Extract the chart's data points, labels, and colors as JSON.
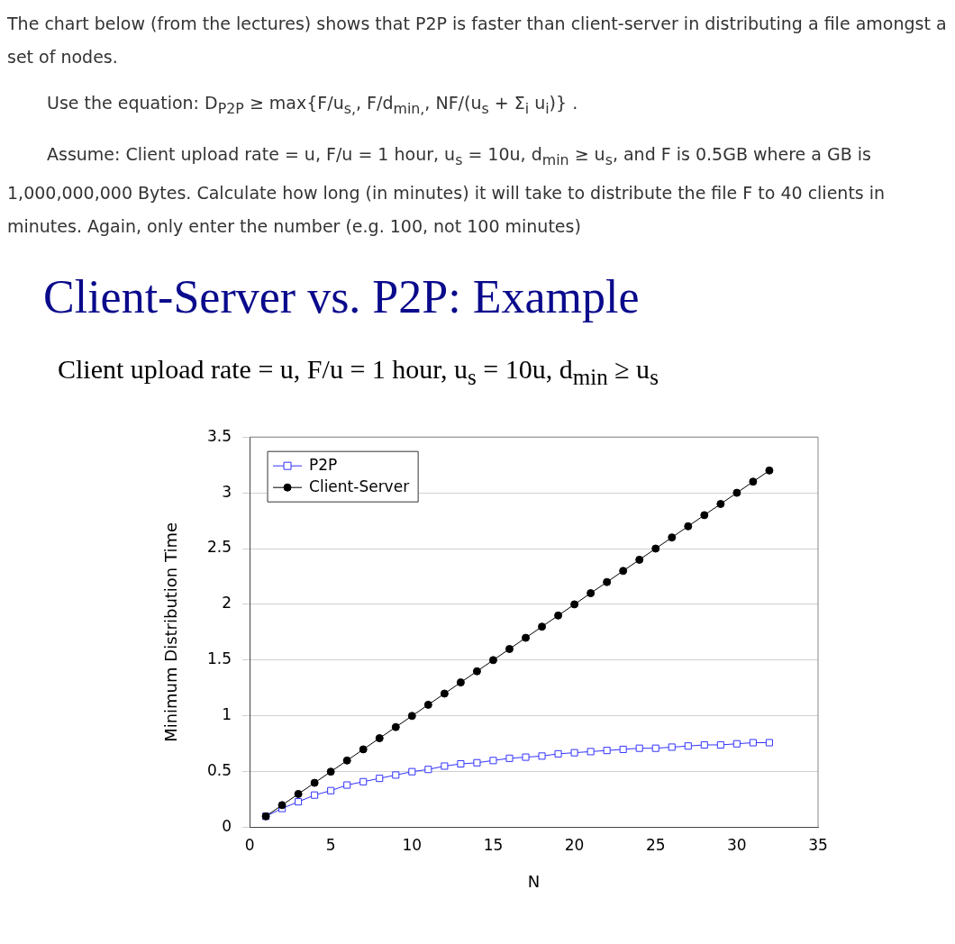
{
  "chart_data": {
    "type": "line",
    "title": "Client-Server vs. P2P: Example",
    "subtitle": "Client upload rate = u,  F/u = 1 hour,  u$_{s}$ = 10u,  d$_{min}$ ≥ u$_{s}$",
    "annotations": [
      "The chart below (from the lectures) shows that P2P is faster than client-server in distributing a file amongst a set of nodes.",
      "Use the equation: D$_{P2P}$ ≥  max{F/u$_{s,}$, F/d$_{min,}$, NF/(u$_{s}$ + Σ$_{i}$ u$_{i}$)} .",
      "Assume: Client upload rate = u,  F/u = 1 hour,  u$_{s}$ = 10u,  d$_{min}$ ≥ u$_{s}$, and F is 0.5GB where a GB is 1,000,000,000 Bytes. Calculate how long (in minutes) it will take to distribute the file F to 40 clients in minutes. Again, only enter the number (e.g. 100, not 100 minutes)"
    ],
    "xlabel": "N",
    "ylabel": "Minimum Distribution Time",
    "x": [
      1,
      2,
      3,
      4,
      5,
      6,
      7,
      8,
      9,
      10,
      11,
      12,
      13,
      14,
      15,
      16,
      17,
      18,
      19,
      20,
      21,
      22,
      23,
      24,
      25,
      26,
      27,
      28,
      29,
      30,
      31,
      32
    ],
    "series": [
      {
        "name": "P2P",
        "color": "#3333ff",
        "marker": "square",
        "values": [
          0.1,
          0.17,
          0.23,
          0.29,
          0.33,
          0.38,
          0.41,
          0.44,
          0.47,
          0.5,
          0.52,
          0.55,
          0.57,
          0.58,
          0.6,
          0.62,
          0.63,
          0.64,
          0.66,
          0.67,
          0.68,
          0.69,
          0.7,
          0.71,
          0.71,
          0.72,
          0.73,
          0.74,
          0.74,
          0.75,
          0.76,
          0.76
        ]
      },
      {
        "name": "Client-Server",
        "color": "#000000",
        "marker": "circle",
        "values": [
          0.1,
          0.2,
          0.3,
          0.4,
          0.5,
          0.6,
          0.7,
          0.8,
          0.9,
          1.0,
          1.1,
          1.2,
          1.3,
          1.4,
          1.5,
          1.6,
          1.7,
          1.8,
          1.9,
          2.0,
          2.1,
          2.2,
          2.3,
          2.4,
          2.5,
          2.6,
          2.7,
          2.8,
          2.9,
          3.0,
          3.1,
          3.2
        ]
      }
    ],
    "xlim": [
      0,
      35
    ],
    "xticks": [
      0,
      5,
      10,
      15,
      20,
      25,
      30,
      35
    ],
    "ylim": [
      0,
      3.5
    ],
    "yticks": [
      0,
      0.5,
      1,
      1.5,
      2,
      2.5,
      3,
      3.5
    ],
    "grid": "y",
    "legend": "top left",
    "line_style": "solid"
  }
}
